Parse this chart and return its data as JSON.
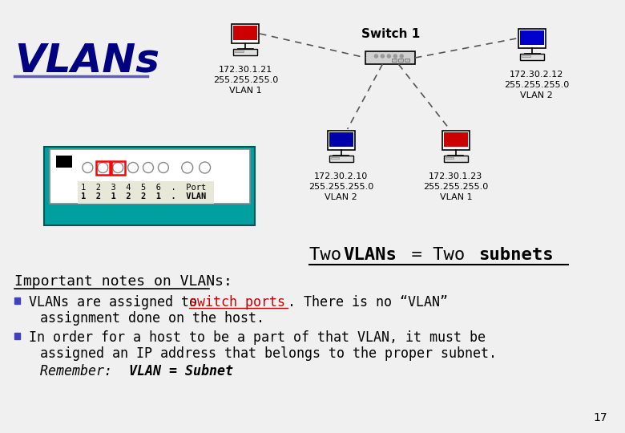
{
  "title": "VLANs",
  "title_color": "#000080",
  "background_color": "#f0f0f0",
  "important_header": "Important notes on VLANs:",
  "bullet1_normal": "VLANs are assigned to ",
  "bullet1_red": "switch ports",
  "bullet2_line1": "In order for a host to be a part of that VLAN, it must be",
  "bullet2_line2": "assigned an IP address that belongs to the proper subnet.",
  "bullet2_remember_italic": "Remember:  ",
  "bullet2_remember_bold": "VLAN = Subnet",
  "slide_number": "17",
  "switch_label": "Switch 1",
  "node_top_left_ip": "172.30.1.21\n255.255.255.0\nVLAN 1",
  "node_top_right_ip": "172.30.2.12\n255.255.255.0\nVLAN 2",
  "node_bot_left_ip": "172.30.2.10\n255.255.255.0\nVLAN 2",
  "node_bot_right_ip": "172.30.1.23\n255.255.255.0\nVLAN 1",
  "teal_color": "#00a0a0",
  "red_color": "#cc0000",
  "blue_color": "#0000cc",
  "bullet_color": "#4040c0"
}
